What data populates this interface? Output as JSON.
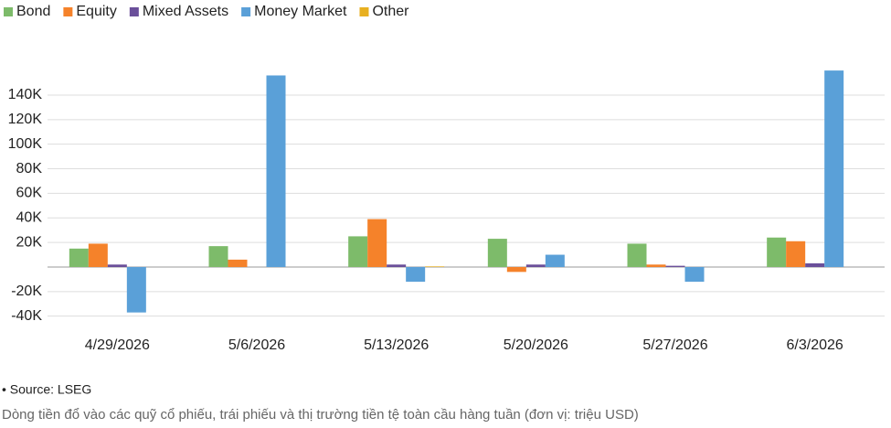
{
  "chart_data": {
    "type": "bar",
    "categories": [
      "4/29/2026",
      "5/6/2026",
      "5/13/2026",
      "5/20/2026",
      "5/27/2026",
      "6/3/2026"
    ],
    "series": [
      {
        "name": "Bond",
        "color": "#7dbb6a",
        "values": [
          15000,
          17000,
          25000,
          23000,
          19000,
          24000
        ]
      },
      {
        "name": "Equity",
        "color": "#f5822a",
        "values": [
          19000,
          6000,
          39000,
          -4000,
          2000,
          21000
        ]
      },
      {
        "name": "Mixed Assets",
        "color": "#6a4f9a",
        "values": [
          2000,
          0,
          2000,
          2000,
          1000,
          3000
        ]
      },
      {
        "name": "Money Market",
        "color": "#5aa0d8",
        "values": [
          -37000,
          156000,
          -12000,
          10000,
          -12000,
          160000
        ]
      },
      {
        "name": "Other",
        "color": "#e8b020",
        "values": [
          0,
          0,
          500,
          0,
          0,
          0
        ]
      }
    ],
    "ylim": [
      -45000,
      165000
    ],
    "yticks": [
      {
        "value": -40000,
        "label": "-40K"
      },
      {
        "value": -20000,
        "label": "-20K"
      },
      {
        "value": 20000,
        "label": "20K"
      },
      {
        "value": 40000,
        "label": "40K"
      },
      {
        "value": 60000,
        "label": "60K"
      },
      {
        "value": 80000,
        "label": "80K"
      },
      {
        "value": 100000,
        "label": "100K"
      },
      {
        "value": 120000,
        "label": "120K"
      },
      {
        "value": 140000,
        "label": "140K"
      }
    ],
    "grid": true,
    "legend": "top",
    "source": "• Source: LSEG",
    "caption": "Dòng tiền đổ vào các quỹ cổ phiếu, trái phiếu và thị trường tiền tệ toàn cầu hàng tuần (đơn vị: triệu USD)"
  }
}
